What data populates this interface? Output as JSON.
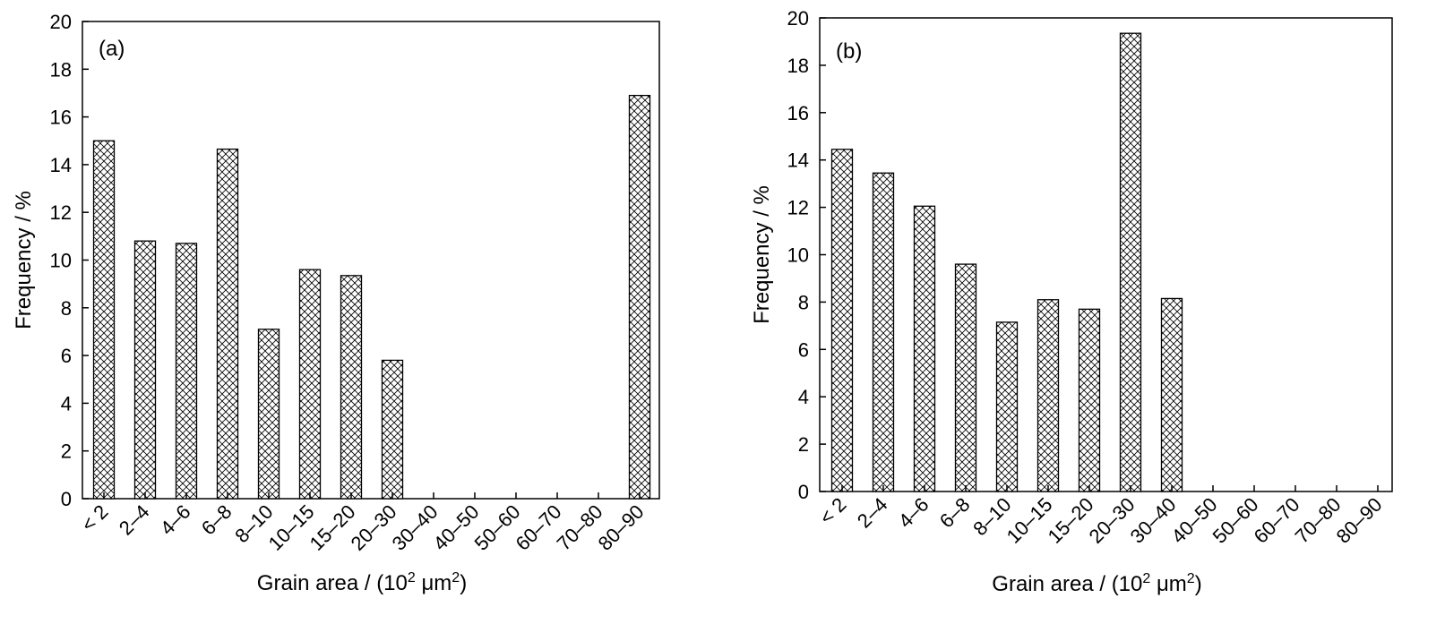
{
  "chart_data": [
    {
      "type": "bar",
      "panel_label": "(a)",
      "categories": [
        "< 2",
        "2–4",
        "4–6",
        "6–8",
        "8–10",
        "10–15",
        "15–20",
        "20–30",
        "30–40",
        "40–50",
        "50–60",
        "60–70",
        "70–80",
        "80–90"
      ],
      "values": [
        15.0,
        10.8,
        10.7,
        14.65,
        7.1,
        9.6,
        9.35,
        5.8,
        0,
        0,
        0,
        0,
        0,
        16.9
      ],
      "xlabel": {
        "prefix": "Grain area / (10",
        "sup1": "2",
        "mid": " μm",
        "sup2": "2",
        "suffix": ")"
      },
      "ylabel": "Frequency / %",
      "ylim": [
        0,
        20
      ],
      "yticks": [
        "0",
        "2",
        "4",
        "6",
        "8",
        "10",
        "12",
        "14",
        "16",
        "18",
        "20"
      ],
      "bar_fill": "crosshatch",
      "grid": false
    },
    {
      "type": "bar",
      "panel_label": "(b)",
      "categories": [
        "< 2",
        "2–4",
        "4–6",
        "6–8",
        "8–10",
        "10–15",
        "15–20",
        "20–30",
        "30–40",
        "40–50",
        "50–60",
        "60–70",
        "70–80",
        "80–90"
      ],
      "values": [
        14.45,
        13.45,
        12.05,
        9.6,
        7.15,
        8.1,
        7.7,
        19.35,
        8.15,
        0,
        0,
        0,
        0,
        0
      ],
      "xlabel": {
        "prefix": "Grain  area / (10",
        "sup1": "2",
        "mid": " μm",
        "sup2": "2",
        "suffix": ")"
      },
      "ylabel": "Frequency / %",
      "ylim": [
        0,
        20
      ],
      "yticks": [
        "0",
        "2",
        "4",
        "6",
        "8",
        "10",
        "12",
        "14",
        "16",
        "18",
        "20"
      ],
      "bar_fill": "crosshatch",
      "grid": false
    }
  ]
}
